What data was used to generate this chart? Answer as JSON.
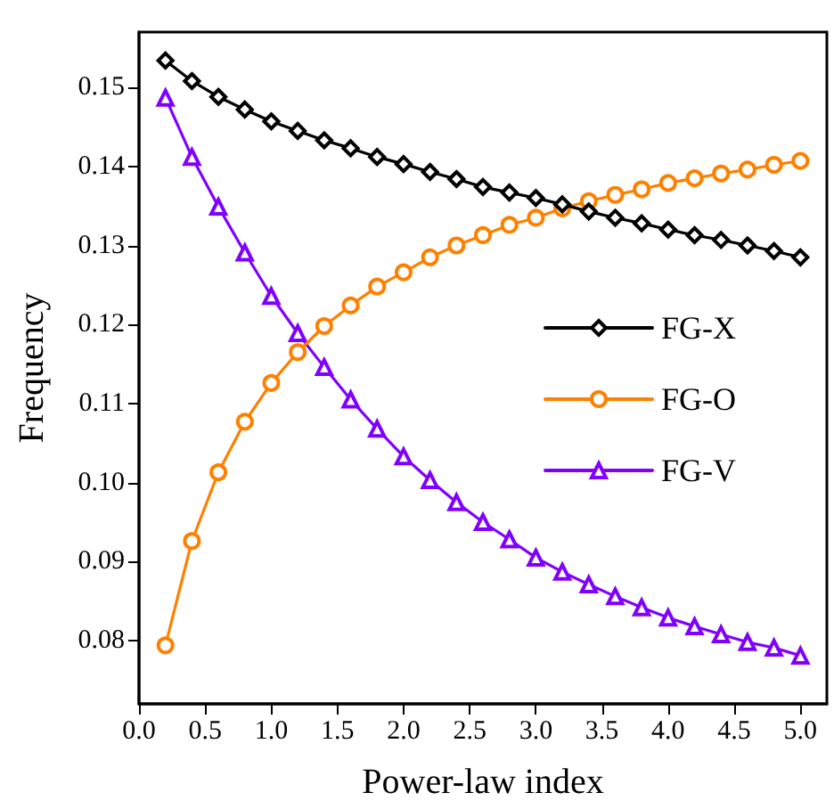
{
  "chart_data": {
    "type": "line",
    "xlabel": "Power-law index",
    "ylabel": "Frequency",
    "x": [
      0.2,
      0.4,
      0.6,
      0.8,
      1.0,
      1.2,
      1.4,
      1.6,
      1.8,
      2.0,
      2.2,
      2.4,
      2.6,
      2.8,
      3.0,
      3.2,
      3.4,
      3.6,
      3.8,
      4.0,
      4.2,
      4.4,
      4.6,
      4.8,
      5.0
    ],
    "series": [
      {
        "name": "FG-X",
        "color": "#000000",
        "marker": "diamond",
        "values": [
          0.1534,
          0.1508,
          0.1488,
          0.1472,
          0.1457,
          0.1445,
          0.1433,
          0.1423,
          0.1412,
          0.1403,
          0.1393,
          0.1384,
          0.1374,
          0.1367,
          0.136,
          0.1352,
          0.1343,
          0.1335,
          0.1328,
          0.132,
          0.1313,
          0.1307,
          0.13,
          0.1293,
          0.1285
        ]
      },
      {
        "name": "FG-O",
        "color": "#ff8000",
        "marker": "circle",
        "values": [
          0.0794,
          0.0926,
          0.1013,
          0.1077,
          0.1126,
          0.1165,
          0.1198,
          0.1224,
          0.1248,
          0.1266,
          0.1285,
          0.13,
          0.1313,
          0.1326,
          0.1335,
          0.1347,
          0.1356,
          0.1364,
          0.1371,
          0.1379,
          0.1385,
          0.1391,
          0.1396,
          0.1402,
          0.1407
        ]
      },
      {
        "name": "FG-V",
        "color": "#8000ff",
        "marker": "triangle",
        "values": [
          0.1487,
          0.1412,
          0.1349,
          0.1291,
          0.1236,
          0.1189,
          0.1146,
          0.1105,
          0.1068,
          0.1033,
          0.1003,
          0.0975,
          0.095,
          0.0928,
          0.0905,
          0.0887,
          0.0871,
          0.0856,
          0.0842,
          0.0829,
          0.0818,
          0.0808,
          0.0798,
          0.0791,
          0.0781
        ]
      }
    ],
    "xlim": [
      0,
      5.2
    ],
    "xticks": [
      {
        "value": 0,
        "label": "0.0"
      },
      0.5,
      {
        "value": 1,
        "label": "1.0"
      },
      1.5,
      {
        "value": 2,
        "label": "2.0"
      },
      2.5,
      {
        "value": 3,
        "label": "3.0"
      },
      3.5,
      {
        "value": 4,
        "label": "4.0"
      },
      4.5,
      {
        "value": 5,
        "label": "5.0"
      }
    ],
    "ylim": [
      0.072,
      0.157
    ],
    "yticks": [
      0.08,
      0.09,
      {
        "value": 0.1,
        "label": "0.10"
      },
      0.11,
      0.12,
      0.13,
      0.14,
      0.15
    ],
    "legend": "right",
    "grid": false,
    "line_style": "solid"
  }
}
